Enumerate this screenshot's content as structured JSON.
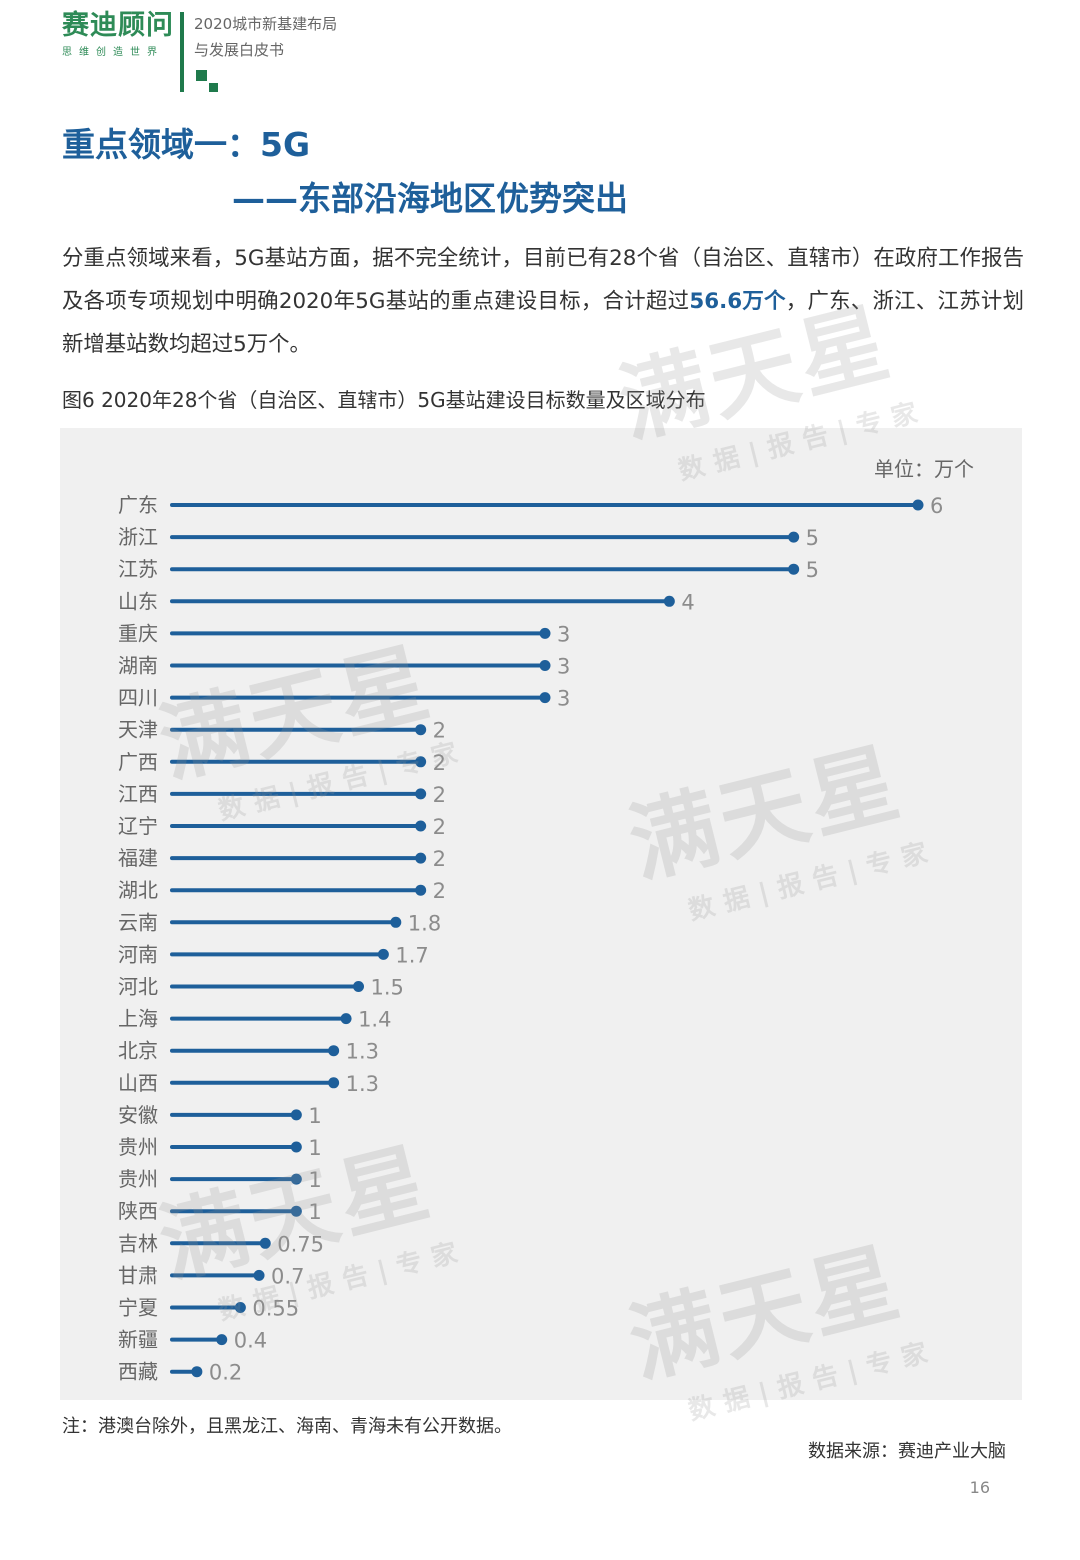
{
  "header": {
    "logo_main": "赛迪顾问",
    "logo_sub": "思维创造世界",
    "report_line1": "2020城市新基建布局",
    "report_line2": "与发展白皮书"
  },
  "section": {
    "title_line1": "重点领域一：5G",
    "title_line2": "——东部沿海地区优势突出"
  },
  "paragraph": {
    "before": "分重点领域来看，5G基站方面，据不完全统计，目前已有28个省（自治区、直辖市）在政府工作报告及各项专项规划中明确2020年5G基站的重点建设目标，合计超过",
    "highlight": "56.6万个",
    "after": "，广东、浙江、江苏计划新增基站数均超过5万个。"
  },
  "figure": {
    "caption": "图6  2020年28个省（自治区、直辖市）5G基站建设目标数量及区域分布",
    "unit": "单位：万个"
  },
  "watermark": {
    "main": "满天星",
    "sub": "数据|报告|专家"
  },
  "chart_data": {
    "type": "bar",
    "orientation": "horizontal",
    "unit": "单位：万个",
    "categories": [
      "广东",
      "浙江",
      "江苏",
      "山东",
      "重庆",
      "湖南",
      "四川",
      "天津",
      "广西",
      "江西",
      "辽宁",
      "福建",
      "湖北",
      "云南",
      "河南",
      "河北",
      "上海",
      "北京",
      "山西",
      "安徽",
      "贵州",
      "贵州",
      "陕西",
      "吉林",
      "甘肃",
      "宁夏",
      "新疆",
      "西藏"
    ],
    "values": [
      6,
      5,
      5,
      4,
      3,
      3,
      3,
      2,
      2,
      2,
      2,
      2,
      2,
      1.8,
      1.7,
      1.5,
      1.4,
      1.3,
      1.3,
      1,
      1,
      1,
      1,
      0.75,
      0.7,
      0.55,
      0.4,
      0.2
    ],
    "value_labels": [
      "6",
      "5",
      "5",
      "4",
      "3",
      "3",
      "3",
      "2",
      "2",
      "2",
      "2",
      "2",
      "2",
      "1.8",
      "1.7",
      "1.5",
      "1.4",
      "1.3",
      "1.3",
      "1",
      "1",
      "1",
      "1",
      "0.75",
      "0.7",
      "0.55",
      "0.4",
      "0.2"
    ],
    "xlim": [
      0,
      6
    ],
    "grid": false,
    "colors": {
      "bar": "#1e5f9a",
      "label": "#8c8c8c",
      "category": "#666666"
    }
  },
  "footer": {
    "note": "注：港澳台除外，且黑龙江、海南、青海未有公开数据。",
    "source": "数据来源：赛迪产业大脑",
    "page": "16"
  }
}
